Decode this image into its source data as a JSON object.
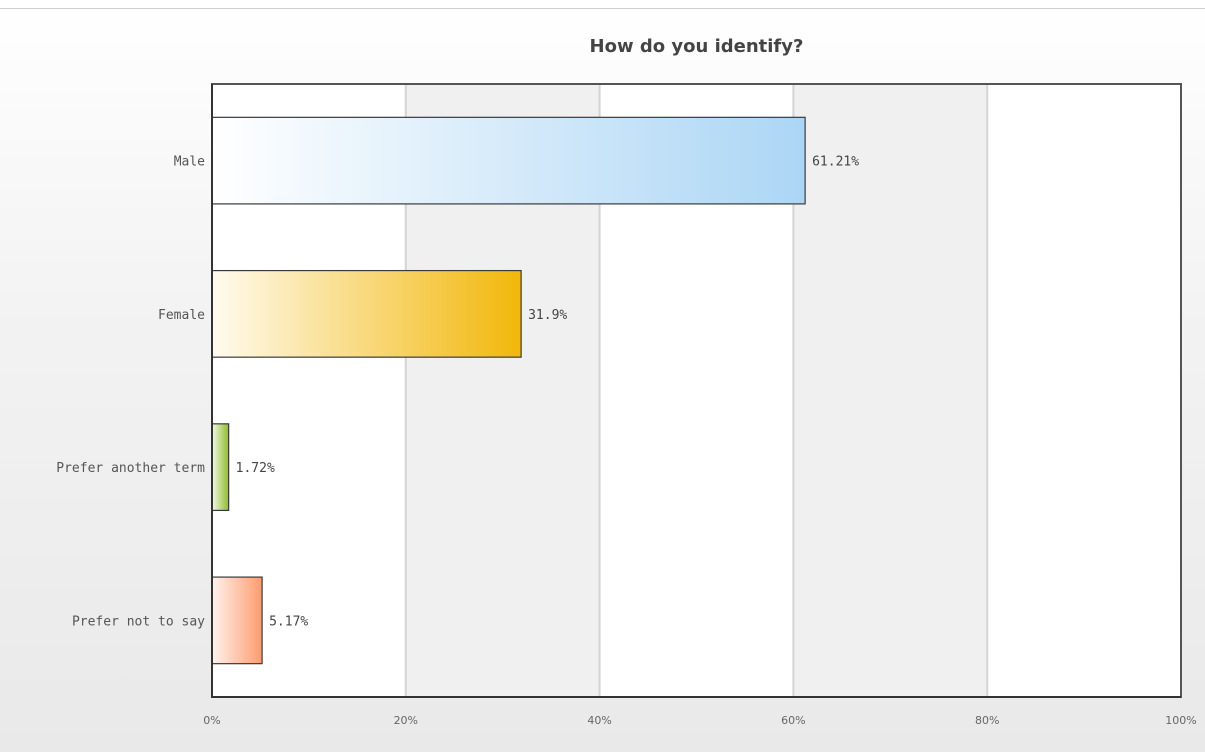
{
  "chart_data": {
    "type": "bar",
    "orientation": "horizontal",
    "title": "How do you identify?",
    "categories": [
      "Male",
      "Female",
      "Prefer another term",
      "Prefer not to say"
    ],
    "values": [
      61.21,
      31.9,
      1.72,
      5.17
    ],
    "value_labels": [
      "61.21%",
      "31.9%",
      "1.72%",
      "5.17%"
    ],
    "xlim": [
      0,
      100
    ],
    "x_ticks": [
      "0%",
      "20%",
      "40%",
      "60%",
      "80%",
      "100%"
    ],
    "grid": true,
    "legend": "none",
    "bar_colors": [
      [
        "#ffffff",
        "#acd6f5"
      ],
      [
        "#fffbef",
        "#f2b70a"
      ],
      [
        "#f4f9e6",
        "#8cbc2c"
      ],
      [
        "#fff3ee",
        "#fc9c6e"
      ]
    ],
    "band_colors": [
      "#ffffff",
      "#f0f0f0"
    ]
  }
}
